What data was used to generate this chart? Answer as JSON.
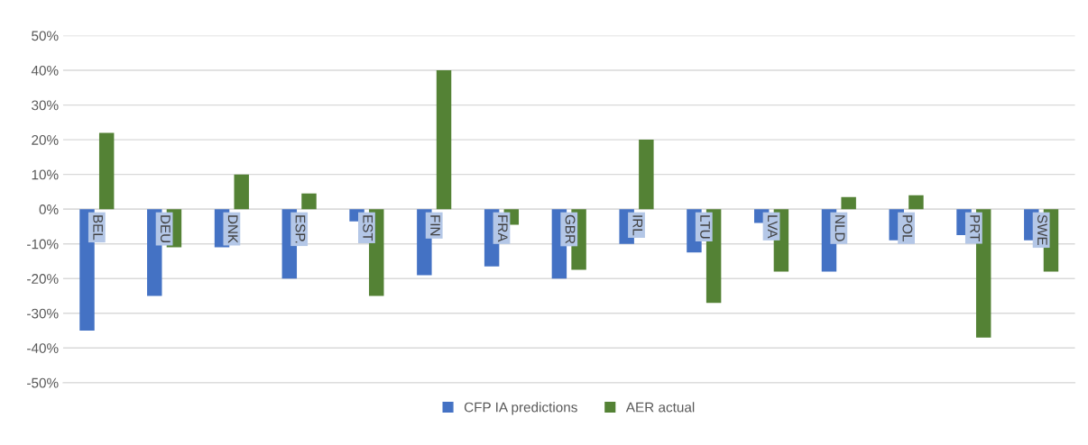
{
  "chart_data": {
    "type": "bar",
    "categories": [
      "BEL",
      "DEU",
      "DNK",
      "ESP.",
      "EST",
      "FIN",
      "FRA",
      "GBR",
      "IRL",
      "LTU",
      "LVA",
      "NLD",
      "POL",
      "PRT",
      "SWE"
    ],
    "series": [
      {
        "name": "CFP IA predictions",
        "color": "#4472c4",
        "values": [
          -35,
          -25,
          -11,
          -20,
          -3.5,
          -19,
          -16.5,
          -20,
          -10,
          -12.5,
          -4,
          -18,
          -9,
          -7.5,
          -9
        ]
      },
      {
        "name": "AER actual",
        "color": "#548235",
        "values": [
          22,
          -11,
          10,
          4.5,
          -25,
          40,
          -4.5,
          -17.5,
          20,
          -27,
          -18,
          3.5,
          4,
          -37,
          -18
        ]
      }
    ],
    "ylim": [
      -50,
      50
    ],
    "yticks": [
      {
        "value": -50,
        "label": "-50%"
      },
      {
        "value": -40,
        "label": "-40%"
      },
      {
        "value": -30,
        "label": "-30%"
      },
      {
        "value": -20,
        "label": "-20%"
      },
      {
        "value": -10,
        "label": "-10%"
      },
      {
        "value": 0,
        "label": "0%"
      },
      {
        "value": 10,
        "label": "10%"
      },
      {
        "value": 20,
        "label": "20%"
      },
      {
        "value": 30,
        "label": "30%"
      },
      {
        "value": 40,
        "label": "40%"
      },
      {
        "value": 50,
        "label": "50%"
      }
    ],
    "grid": "y",
    "legend": "bottom"
  }
}
